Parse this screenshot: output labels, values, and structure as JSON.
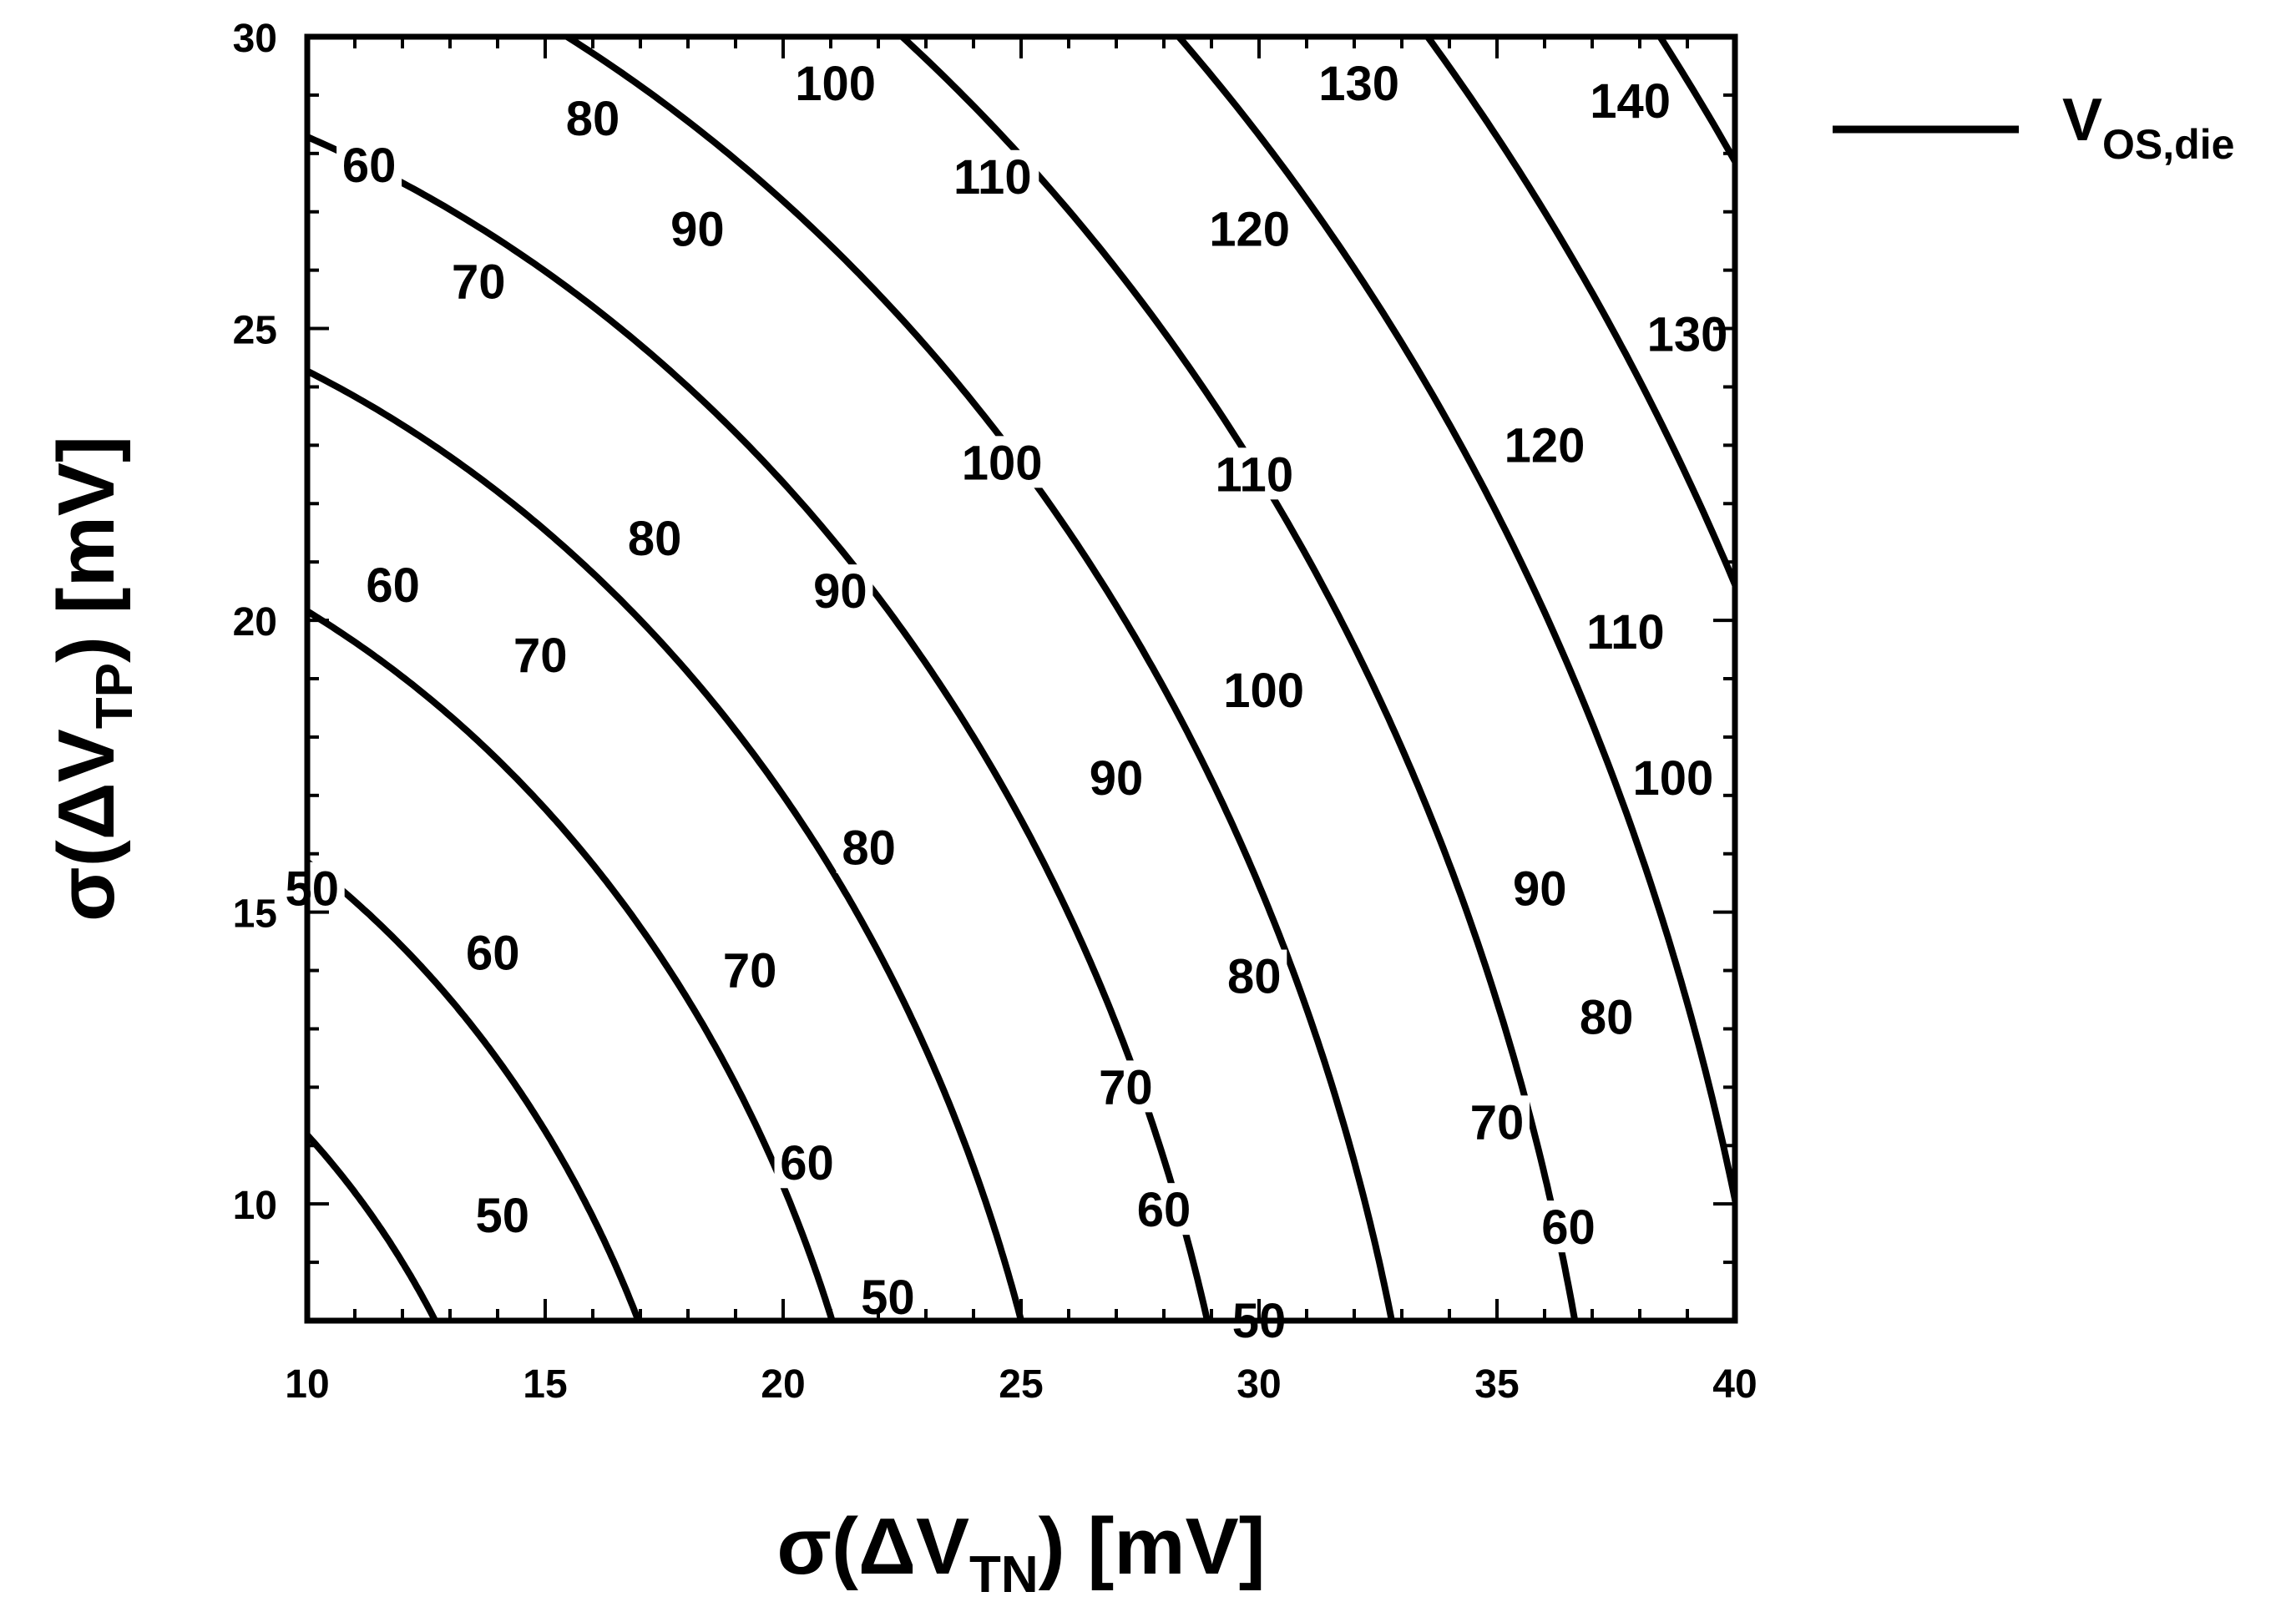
{
  "chart_data": {
    "type": "contour",
    "function": "Vos_die = sqrt(sigma_TN^2 + sigma_TP^2) * 8/3",
    "x": {
      "range": [
        10,
        40
      ],
      "ticks": [
        10,
        15,
        20,
        25,
        30,
        35,
        40
      ],
      "tick_labels": [
        "10",
        "15",
        "20",
        "25",
        "30",
        "35",
        "40"
      ]
    },
    "y": {
      "range": [
        8,
        30
      ],
      "ticks": [
        10,
        15,
        20,
        25,
        30
      ],
      "tick_labels": [
        "10",
        "15",
        "20",
        "25",
        "30"
      ]
    },
    "xlabel": {
      "sigma": "σ(ΔV",
      "sub": "TN",
      "unit": ") [mV]"
    },
    "ylabel": {
      "sigma": "σ(ΔV",
      "sub": "TP",
      "unit": ") [mV]"
    },
    "levels": [
      40,
      50,
      60,
      70,
      80,
      90,
      100,
      110,
      120,
      130,
      140
    ],
    "contour_labels": [
      {
        "text": "50",
        "x": 10.1,
        "y": 15.4
      },
      {
        "text": "50",
        "x": 14.1,
        "y": 9.8
      },
      {
        "text": "50",
        "x": 22.2,
        "y": 8.4
      },
      {
        "text": "50",
        "x": 30.0,
        "y": 8.0
      },
      {
        "text": "60",
        "x": 11.3,
        "y": 27.8
      },
      {
        "text": "60",
        "x": 11.8,
        "y": 20.6
      },
      {
        "text": "60",
        "x": 13.9,
        "y": 14.3
      },
      {
        "text": "60",
        "x": 20.5,
        "y": 10.7
      },
      {
        "text": "60",
        "x": 28.0,
        "y": 9.9
      },
      {
        "text": "60",
        "x": 36.5,
        "y": 9.6
      },
      {
        "text": "70",
        "x": 13.6,
        "y": 25.8
      },
      {
        "text": "70",
        "x": 14.9,
        "y": 19.4
      },
      {
        "text": "70",
        "x": 19.3,
        "y": 14.0
      },
      {
        "text": "70",
        "x": 27.2,
        "y": 12.0
      },
      {
        "text": "70",
        "x": 35.0,
        "y": 11.4
      },
      {
        "text": "80",
        "x": 16.0,
        "y": 28.6
      },
      {
        "text": "80",
        "x": 17.3,
        "y": 21.4
      },
      {
        "text": "80",
        "x": 21.8,
        "y": 16.1
      },
      {
        "text": "80",
        "x": 29.9,
        "y": 13.9
      },
      {
        "text": "80",
        "x": 37.3,
        "y": 13.2
      },
      {
        "text": "90",
        "x": 18.2,
        "y": 26.7
      },
      {
        "text": "90",
        "x": 21.2,
        "y": 20.5
      },
      {
        "text": "90",
        "x": 27.0,
        "y": 17.3
      },
      {
        "text": "90",
        "x": 35.9,
        "y": 15.4
      },
      {
        "text": "100",
        "x": 21.1,
        "y": 29.2
      },
      {
        "text": "100",
        "x": 24.6,
        "y": 22.7
      },
      {
        "text": "100",
        "x": 30.1,
        "y": 18.8
      },
      {
        "text": "100",
        "x": 38.7,
        "y": 17.3
      },
      {
        "text": "110",
        "x": 24.4,
        "y": 27.6
      },
      {
        "text": "110",
        "x": 29.9,
        "y": 22.5
      },
      {
        "text": "110",
        "x": 37.7,
        "y": 19.8
      },
      {
        "text": "120",
        "x": 29.8,
        "y": 26.7
      },
      {
        "text": "120",
        "x": 36.0,
        "y": 23.0
      },
      {
        "text": "130",
        "x": 32.1,
        "y": 29.2
      },
      {
        "text": "130",
        "x": 39.0,
        "y": 24.9
      },
      {
        "text": "140",
        "x": 37.8,
        "y": 28.9
      }
    ],
    "legend": {
      "label": "V",
      "sub": "OS,die",
      "position": "right"
    },
    "grid": false
  }
}
